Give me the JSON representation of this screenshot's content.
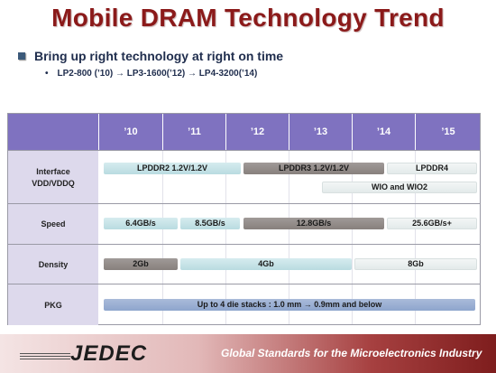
{
  "title": "Mobile DRAM Technology Trend",
  "bullet_main": "Bring up right technology at right on time",
  "bullet_sub_marker": "•",
  "bullet_sub": "LP2-800 (’10) → LP3-1600(’12) → LP4-3200(’14)",
  "table": {
    "years": [
      "’10",
      "’11",
      "’12",
      "’13",
      "’14",
      "’15"
    ],
    "rows": {
      "interface": {
        "label_line1": "Interface",
        "label_line2": "VDD/VDDQ"
      },
      "speed": {
        "label": "Speed"
      },
      "density": {
        "label": "Density"
      },
      "pkg": {
        "label": "PKG"
      }
    },
    "bars": {
      "lpddr2": "LPDDR2 1.2V/1.2V",
      "lpddr3": "LPDDR3 1.2V/1.2V",
      "lpddr4": "LPDDR4",
      "wio": "WIO and WIO2",
      "speed1": "6.4GB/s",
      "speed2": "8.5GB/s",
      "speed3": "12.8GB/s",
      "speed4": "25.6GB/s+",
      "density1": "2Gb",
      "density2": "4Gb",
      "density3": "8Gb",
      "pkg": "Up to 4 die stacks  : 1.0 mm → 0.9mm and below"
    }
  },
  "footer": {
    "logo": "JEDEC",
    "tagline": "Global Standards for the Microelectronics Industry"
  },
  "colors": {
    "title": "#8b1a1a",
    "header": "#7f72c0",
    "label_bg": "#ddd9ec",
    "bar_light": "#c6e3e7",
    "bar_dark": "#948d8a",
    "bar_blue": "#9bb0d3"
  }
}
